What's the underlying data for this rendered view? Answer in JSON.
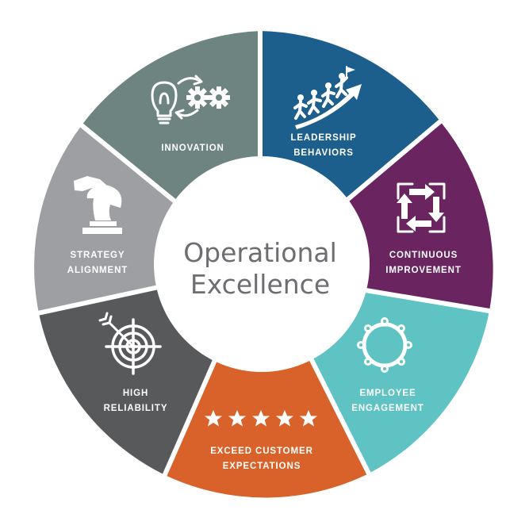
{
  "diagram": {
    "center": {
      "line1": "Operational",
      "line2": "Excellence"
    },
    "segments": [
      {
        "id": "innovation",
        "lines": [
          "INNOVATION"
        ],
        "color": "#6e8480",
        "icon": "lightbulb-gears-icon"
      },
      {
        "id": "leadership-behaviors",
        "lines": [
          "LEADERSHIP",
          "BEHAVIORS"
        ],
        "color": "#1d5f8c",
        "icon": "climbing-people-icon"
      },
      {
        "id": "continuous-improvement",
        "lines": [
          "CONTINUOUS",
          "IMPROVEMENT"
        ],
        "color": "#6a2561",
        "icon": "cycle-arrows-icon"
      },
      {
        "id": "employee-engagement",
        "lines": [
          "EMPLOYEE",
          "ENGAGEMENT"
        ],
        "color": "#5ec3c2",
        "icon": "people-circle-icon"
      },
      {
        "id": "exceed-customer-expectations",
        "lines": [
          "EXCEED CUSTOMER",
          "EXPECTATIONS"
        ],
        "color": "#d8622a",
        "icon": "five-stars-icon"
      },
      {
        "id": "high-reliability",
        "lines": [
          "HIGH",
          "RELIABILITY"
        ],
        "color": "#58595b",
        "icon": "target-arrow-icon"
      },
      {
        "id": "strategy-alignment",
        "lines": [
          "STRATEGY",
          "ALIGNMENT"
        ],
        "color": "#9d9fa2",
        "icon": "chess-knight-icon"
      }
    ]
  }
}
